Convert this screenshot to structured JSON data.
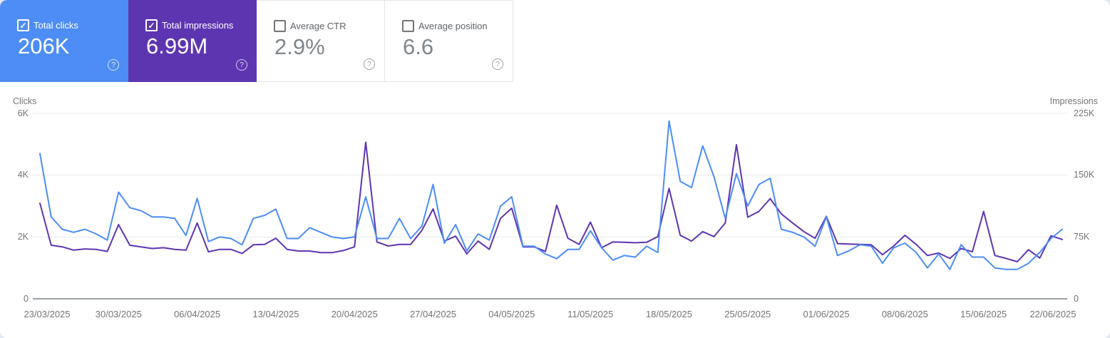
{
  "icons": {
    "check": "✓",
    "help": "?"
  },
  "cards": [
    {
      "id": "total-clicks",
      "label": "Total clicks",
      "value": "206K",
      "checked": true,
      "color": "#4e8df5"
    },
    {
      "id": "total-impressions",
      "label": "Total impressions",
      "value": "6.99M",
      "checked": true,
      "color": "#5e35b1"
    },
    {
      "id": "average-ctr",
      "label": "Average CTR",
      "value": "2.9%",
      "checked": false
    },
    {
      "id": "average-position",
      "label": "Average position",
      "value": "6.6",
      "checked": false
    }
  ],
  "chart_data": {
    "type": "line",
    "grid": "horizontal",
    "x_axis": {
      "labels": [
        "23/03/2025",
        "30/03/2025",
        "06/04/2025",
        "13/04/2025",
        "20/04/2025",
        "27/04/2025",
        "04/05/2025",
        "11/05/2025",
        "18/05/2025",
        "25/05/2025",
        "01/06/2025",
        "08/06/2025",
        "15/06/2025",
        "22/06/2025"
      ],
      "points_per_series": 92,
      "label_every_n_points": 7
    },
    "y_left": {
      "title": "Clicks",
      "ticks": [
        "6K",
        "4K",
        "2K",
        "0"
      ],
      "tick_values": [
        6000,
        4000,
        2000,
        0
      ],
      "max": 6000
    },
    "y_right": {
      "title": "Impressions",
      "ticks": [
        "225K",
        "150K",
        "75K",
        "0"
      ],
      "tick_values": [
        225000,
        150000,
        75000,
        0
      ],
      "max": 225000
    },
    "series": [
      {
        "name": "Impressions",
        "axis": "right",
        "color": "#5e35b1",
        "values": [
          116000,
          65000,
          63000,
          59000,
          60500,
          60000,
          57500,
          90000,
          65000,
          63000,
          61000,
          62000,
          60000,
          59000,
          92000,
          57000,
          60000,
          60000,
          55000,
          65500,
          66000,
          73500,
          60000,
          58000,
          58000,
          56000,
          56000,
          58500,
          63000,
          190000,
          69000,
          64000,
          66000,
          66000,
          83000,
          109000,
          70000,
          76000,
          54500,
          70000,
          60000,
          97500,
          110000,
          63000,
          63000,
          57500,
          113500,
          73500,
          66000,
          93000,
          62000,
          69000,
          68500,
          68000,
          68500,
          75500,
          134000,
          77000,
          70000,
          81500,
          75500,
          92000,
          187000,
          99000,
          106000,
          121500,
          103000,
          92000,
          81500,
          73500,
          100000,
          67000,
          66500,
          66000,
          65500,
          53500,
          64000,
          77000,
          66000,
          52500,
          55500,
          49000,
          61000,
          57000,
          106000,
          52500,
          49000,
          45000,
          59500,
          49500,
          76500,
          72000
        ]
      },
      {
        "name": "Clicks",
        "axis": "left",
        "color": "#4e8df5",
        "values": [
          4700,
          2650,
          2250,
          2150,
          2250,
          2100,
          1900,
          3450,
          2950,
          2850,
          2650,
          2650,
          2600,
          2050,
          3250,
          1850,
          2000,
          1950,
          1750,
          2600,
          2700,
          2900,
          1950,
          1950,
          2300,
          2150,
          2000,
          1950,
          2000,
          3300,
          1950,
          1950,
          2600,
          1950,
          2350,
          3700,
          1800,
          2400,
          1550,
          2100,
          1900,
          3000,
          3300,
          1700,
          1700,
          1450,
          1300,
          1600,
          1600,
          2200,
          1650,
          1250,
          1400,
          1350,
          1700,
          1500,
          5750,
          3800,
          3600,
          4950,
          3950,
          2600,
          4050,
          3000,
          3700,
          3900,
          2250,
          2150,
          2000,
          1700,
          2650,
          1400,
          1550,
          1750,
          1700,
          1150,
          1650,
          1800,
          1500,
          1000,
          1450,
          950,
          1750,
          1350,
          1350,
          1000,
          950,
          950,
          1150,
          1500,
          1950,
          2250
        ]
      }
    ]
  }
}
